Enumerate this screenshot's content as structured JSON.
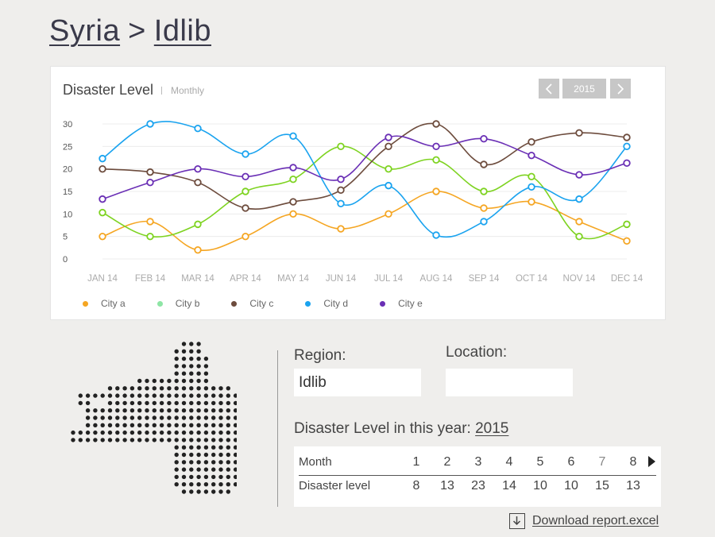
{
  "breadcrumb": {
    "country": "Syria",
    "separator": ">",
    "region": "Idlib"
  },
  "card": {
    "title": "Disaster Level",
    "subtitle": "Monthly",
    "year_prev_icon": "chevron-left-icon",
    "year_next_icon": "chevron-right-icon",
    "year": "2015"
  },
  "chart_data": {
    "type": "line",
    "title": "Disaster Level",
    "categories": [
      "JAN 14",
      "FEB 14",
      "MAR 14",
      "APR 14",
      "MAY 14",
      "JUN 14",
      "JUL 14",
      "AUG 14",
      "SEP 14",
      "OCT 14",
      "NOV 14",
      "DEC 14"
    ],
    "yticks": [
      "30",
      "25",
      "20",
      "15",
      "10",
      "5",
      "0"
    ],
    "ylim": [
      0,
      30
    ],
    "grid": true,
    "legend_position": "bottom-left",
    "series": [
      {
        "name": "City a",
        "color": "#f5a623",
        "values": [
          5,
          8.3,
          2,
          5,
          10,
          6.7,
          10,
          15,
          11.3,
          12.7,
          8.3,
          4
        ]
      },
      {
        "name": "City b",
        "color": "#7ed321",
        "values": [
          10.3,
          5,
          7.7,
          15,
          17.7,
          25,
          20,
          22,
          15,
          18.3,
          5,
          7.7
        ]
      },
      {
        "name": "City c",
        "color": "#6d4c3d",
        "values": [
          20,
          19.3,
          17,
          11.3,
          12.7,
          15.3,
          25,
          30,
          21,
          26,
          28,
          27
        ]
      },
      {
        "name": "City d",
        "color": "#1aa3ef",
        "values": [
          22.3,
          30,
          29,
          23.3,
          27.3,
          12.3,
          16.3,
          5.3,
          8.3,
          16,
          13.3,
          25
        ]
      },
      {
        "name": "City e",
        "color": "#6a2fb5",
        "values": [
          13.3,
          17,
          20,
          18.3,
          20.3,
          17.7,
          27,
          25,
          26.7,
          23,
          18.7,
          21.3
        ]
      }
    ],
    "legend_dot_colors": [
      "#f5a623",
      "#8ee5a5",
      "#6d4c3d",
      "#1aa3ef",
      "#6a2fb5"
    ]
  },
  "map_icon": "idlib-dot-map",
  "form": {
    "region_label": "Region:",
    "region_value": "Idlib",
    "location_label": "Location:",
    "location_value": ""
  },
  "year_line": {
    "label": "Disaster Level in this year:",
    "year": "2015"
  },
  "table": {
    "month_header": "Month",
    "level_header": "Disaster level",
    "months": [
      "1",
      "2",
      "3",
      "4",
      "5",
      "6",
      "7",
      "8"
    ],
    "levels": [
      "8",
      "13",
      "23",
      "14",
      "10",
      "10",
      "15",
      "13"
    ],
    "next_icon": "triangle-right-icon"
  },
  "download": {
    "icon": "download-icon",
    "label": "Download report.excel"
  }
}
